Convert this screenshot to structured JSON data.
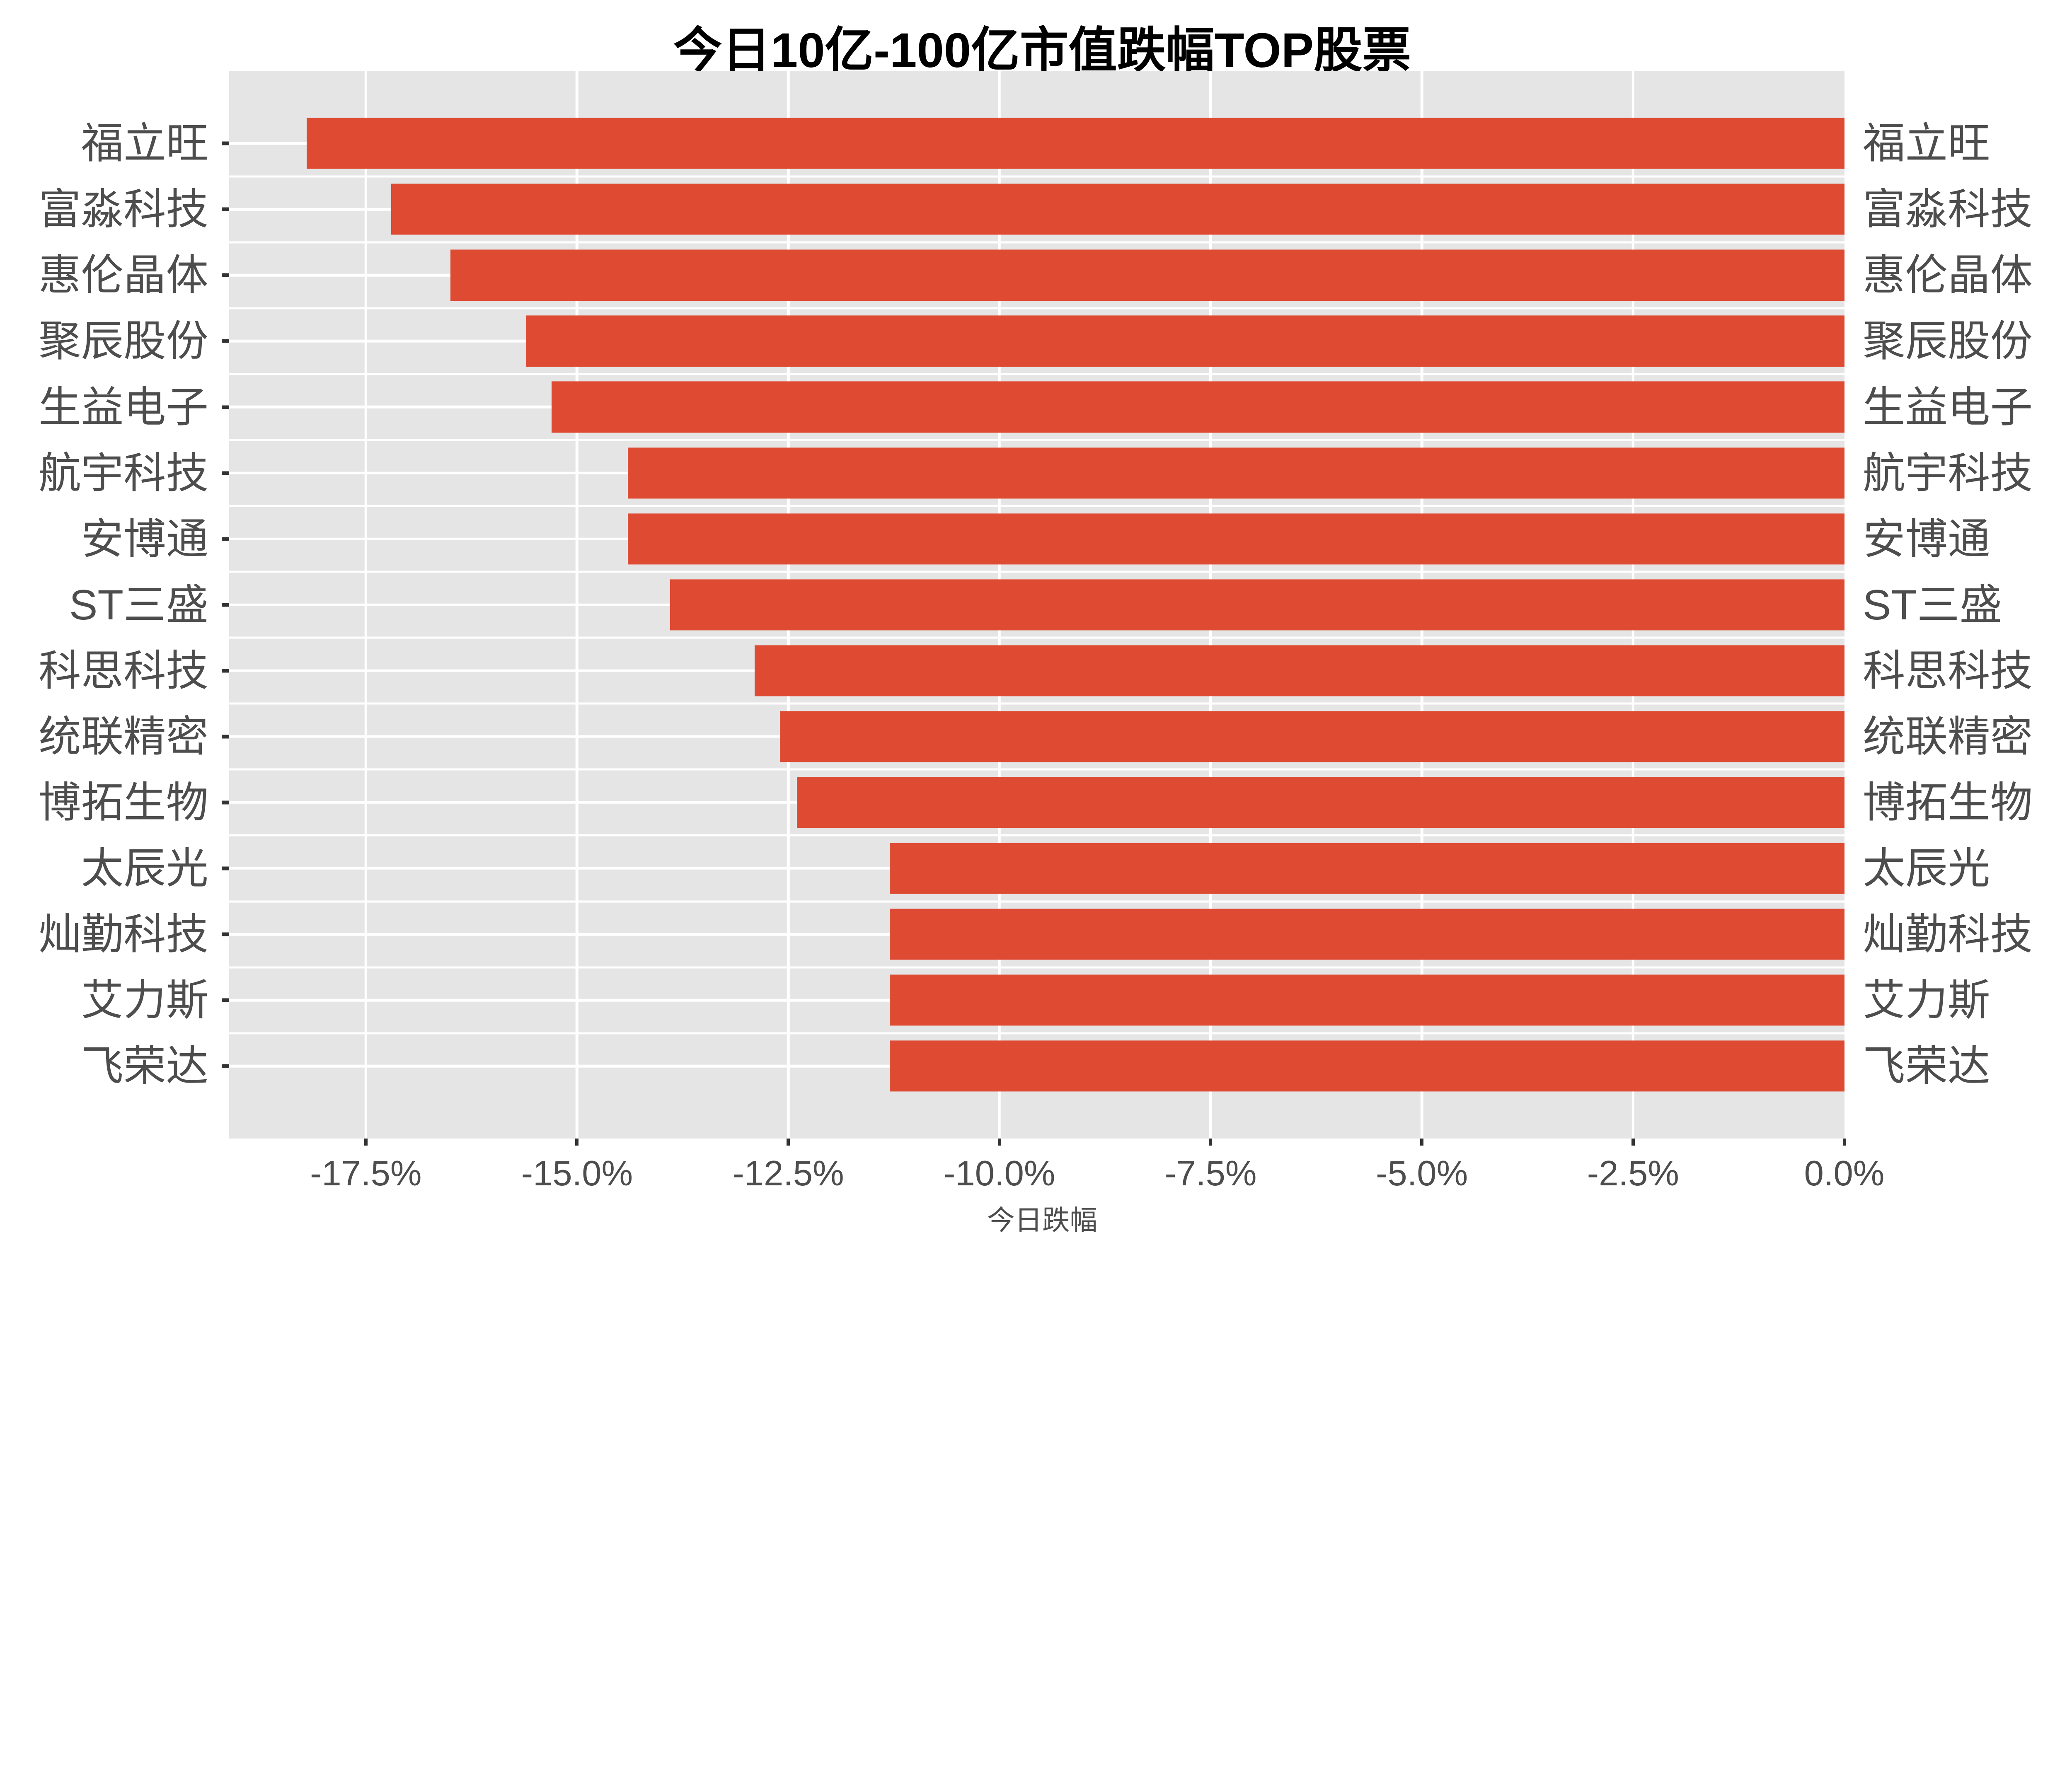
{
  "title": "今日10亿-100亿市值跌幅TOP股票",
  "x_axis_label": "今日跌幅",
  "colors": {
    "bar": "#DE4A32",
    "panel_background": "#E5E5E6",
    "gridline": "#FFFFFF",
    "axis_text": "#4D4D4D",
    "title_text": "#000000",
    "tick_mark": "#333333",
    "figure_background": "#FFFFFF"
  },
  "chart_data": {
    "type": "bar",
    "orientation": "horizontal",
    "title": "今日10亿-100亿市值跌幅TOP股票",
    "xlabel": "今日跌幅",
    "ylabel": "",
    "categories": [
      "福立旺",
      "富淼科技",
      "惠伦晶体",
      "聚辰股份",
      "生益电子",
      "航宇科技",
      "安博通",
      "ST三盛",
      "科思科技",
      "统联精密",
      "博拓生物",
      "太辰光",
      "灿勤科技",
      "艾力斯",
      "飞荣达"
    ],
    "values": [
      -18.2,
      -17.2,
      -16.5,
      -15.6,
      -15.3,
      -14.4,
      -14.4,
      -13.9,
      -12.9,
      -12.6,
      -12.4,
      -11.3,
      -11.3,
      -11.3,
      -11.3
    ],
    "value_unit": "%",
    "xlim": [
      -19.12,
      0
    ],
    "x_ticks": [
      {
        "label": "-17.5%",
        "value": -17.5
      },
      {
        "label": "-15.0%",
        "value": -15.0
      },
      {
        "label": "-12.5%",
        "value": -12.5
      },
      {
        "label": "-10.0%",
        "value": -10.0
      },
      {
        "label": "-7.5%",
        "value": -7.5
      },
      {
        "label": "-5.0%",
        "value": -5.0
      },
      {
        "label": "-2.5%",
        "value": -2.5
      },
      {
        "label": "0.0%",
        "value": 0.0
      }
    ],
    "y_axis_duplicated_right": true,
    "legend_position": "none",
    "grid": {
      "x_major": true,
      "y_major": true,
      "y_minor": true,
      "gridline_color": "white_on_gray_panel"
    }
  }
}
